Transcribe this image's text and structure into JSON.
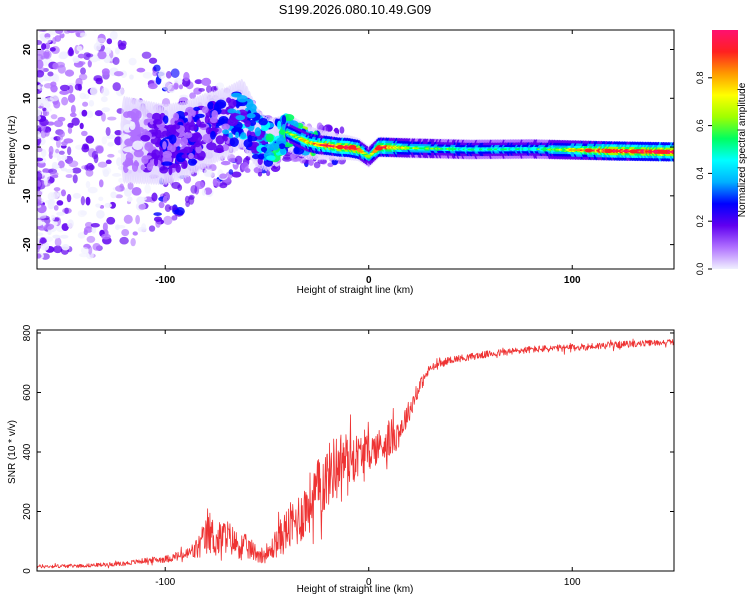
{
  "title": "S199.2026.080.10.49.G09",
  "chart_data": [
    {
      "type": "heatmap",
      "title": "S199.2026.080.10.49.G09",
      "xlabel": "Height of straight line (km)",
      "ylabel": "Frequency (Hz)",
      "xlim": [
        -163,
        150
      ],
      "ylim": [
        -25,
        24
      ],
      "x_ticks": [
        -100,
        0,
        100
      ],
      "x_tick_labels": [
        "-100",
        "0",
        "100"
      ],
      "y_ticks": [
        -20,
        -10,
        0,
        10,
        20
      ],
      "y_tick_labels": [
        "-20",
        "-10",
        "0",
        "10",
        "20"
      ],
      "ridge": {
        "x": [
          -140,
          -120,
          -100,
          -90,
          -80,
          -70,
          -62,
          -55,
          -50,
          -45,
          -40,
          -35,
          -30,
          -25,
          -20,
          -15,
          -10,
          -5,
          0,
          5,
          20,
          50,
          80,
          100,
          120,
          150
        ],
        "frequency": [
          3,
          1.5,
          0.5,
          1.5,
          3.5,
          5,
          7,
          2,
          0.5,
          1.5,
          3,
          2,
          1,
          0.5,
          0.3,
          0,
          -0.1,
          -0.5,
          -2,
          0,
          -0.2,
          -0.5,
          -0.4,
          -0.6,
          -0.8,
          -1
        ],
        "amplitude": [
          0.05,
          0.15,
          0.3,
          0.35,
          0.35,
          0.4,
          0.55,
          0.45,
          0.55,
          0.7,
          0.6,
          0.65,
          0.75,
          0.8,
          0.9,
          0.95,
          1.0,
          0.9,
          0.55,
          0.95,
          0.6,
          0.5,
          0.5,
          0.7,
          0.95,
          1.0
        ]
      },
      "colorbar": {
        "label": "Normalized spectral amplitude",
        "ticks": [
          0.0,
          0.2,
          0.4,
          0.6,
          0.8
        ],
        "tick_labels": [
          "0.0",
          "0.2",
          "0.4",
          "0.6",
          "0.8"
        ],
        "range": [
          0,
          1
        ],
        "colors": [
          "#f0f0ff",
          "#b070ff",
          "#6000f0",
          "#0000ff",
          "#00b0ff",
          "#00ffff",
          "#00ff60",
          "#a0ff00",
          "#ffff00",
          "#ff9900",
          "#ff2020",
          "#ff1070"
        ]
      }
    },
    {
      "type": "line",
      "xlabel": "Height of straight line (km)",
      "ylabel": "SNR (10 * v/v)",
      "xlim": [
        -163,
        150
      ],
      "ylim": [
        0,
        810
      ],
      "x_ticks": [
        -100,
        0,
        100
      ],
      "x_tick_labels": [
        "-100",
        "0",
        "100"
      ],
      "y_ticks": [
        0,
        200,
        400,
        600,
        800
      ],
      "y_tick_labels": [
        "0",
        "200",
        "400",
        "600",
        "800"
      ],
      "series": [
        {
          "name": "SNR",
          "color": "#ee3333",
          "x": [
            -163,
            -140,
            -120,
            -110,
            -100,
            -90,
            -85,
            -80,
            -78,
            -75,
            -70,
            -65,
            -60,
            -55,
            -50,
            -45,
            -40,
            -35,
            -30,
            -25,
            -20,
            -15,
            -10,
            -5,
            0,
            5,
            10,
            15,
            20,
            25,
            30,
            40,
            60,
            80,
            100,
            120,
            150
          ],
          "mean": [
            15,
            18,
            25,
            35,
            40,
            55,
            70,
            110,
            130,
            100,
            120,
            90,
            80,
            60,
            50,
            100,
            140,
            170,
            220,
            270,
            320,
            370,
            380,
            390,
            400,
            420,
            440,
            470,
            540,
            620,
            680,
            710,
            730,
            745,
            750,
            760,
            770
          ],
          "noise": [
            10,
            10,
            12,
            15,
            20,
            30,
            60,
            110,
            120,
            100,
            100,
            80,
            70,
            50,
            40,
            90,
            130,
            150,
            170,
            180,
            180,
            170,
            150,
            120,
            100,
            100,
            110,
            90,
            60,
            40,
            25,
            20,
            20,
            20,
            20,
            20,
            15
          ]
        }
      ]
    }
  ]
}
